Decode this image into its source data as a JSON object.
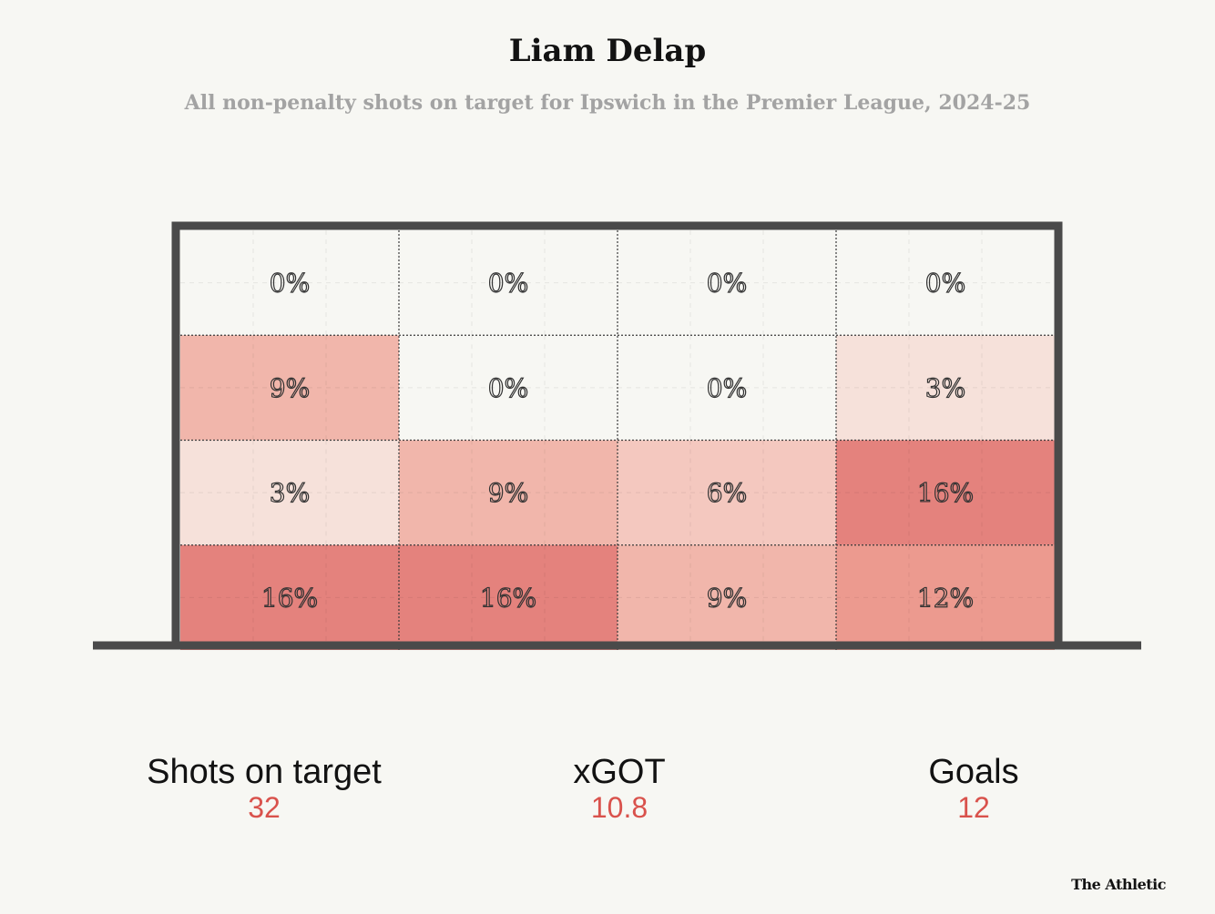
{
  "chart_data": {
    "type": "heatmap",
    "title": "Liam Delap",
    "subtitle": "All non-penalty shots on target for Ipswich in the Premier League, 2024-25",
    "rows": 4,
    "cols": 4,
    "values": [
      [
        "0%",
        "0%",
        "0%",
        "0%"
      ],
      [
        "9%",
        "0%",
        "0%",
        "3%"
      ],
      [
        "3%",
        "9%",
        "6%",
        "16%"
      ],
      [
        "16%",
        "16%",
        "9%",
        "12%"
      ]
    ],
    "color_scale": {
      "0": "#f7f7f3",
      "3": "#f6e1da",
      "6": "#f4c8bf",
      "9": "#f1b6ab",
      "12": "#ec9a8f",
      "16": "#e4827d"
    }
  },
  "stats": [
    {
      "label": "Shots on target",
      "value": "32"
    },
    {
      "label": "xGOT",
      "value": "10.8"
    },
    {
      "label": "Goals",
      "value": "12"
    }
  ],
  "brand": "The Athletic"
}
